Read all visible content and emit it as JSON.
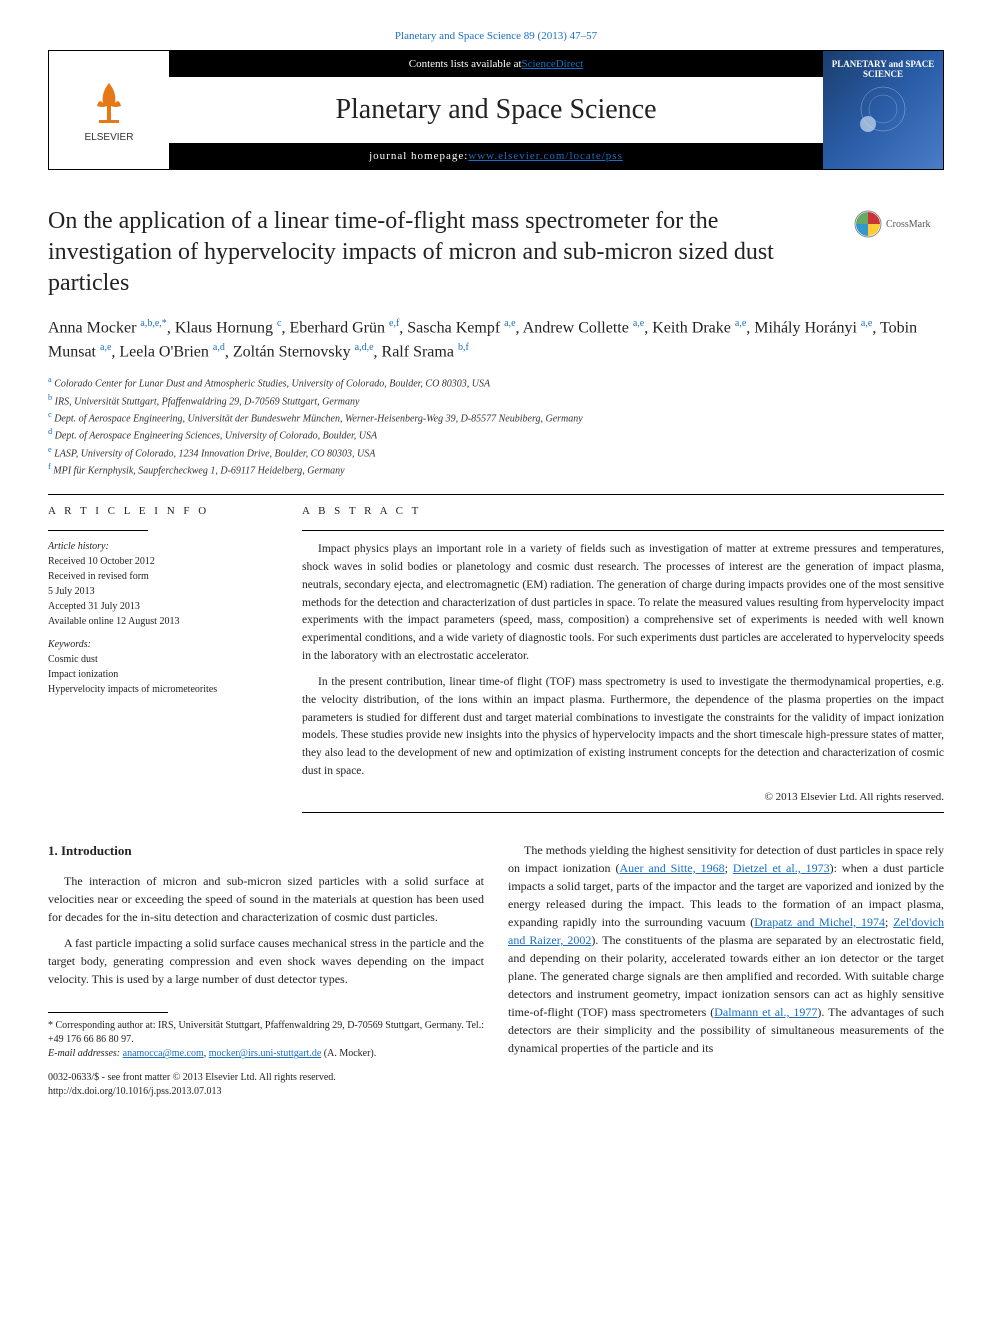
{
  "header": {
    "top_link": "Planetary and Space Science 89 (2013) 47–57",
    "contents_text": "Contents lists available at ",
    "contents_link": "ScienceDirect",
    "journal_name": "Planetary and Space Science",
    "homepage_label": "journal homepage: ",
    "homepage_url": "www.elsevier.com/locate/pss",
    "elsevier": "ELSEVIER",
    "cover_title": "PLANETARY and SPACE SCIENCE"
  },
  "title": "On the application of a linear time-of-flight mass spectrometer for the investigation of hypervelocity impacts of micron and sub-micron sized dust particles",
  "crossmark": "CrossMark",
  "authors_html": "Anna Mocker <sup>a,b,e,*</sup>, Klaus Hornung <sup>c</sup>, Eberhard Grün <sup>e,f</sup>, Sascha Kempf <sup>a,e</sup>, Andrew Collette <sup>a,e</sup>, Keith Drake <sup>a,e</sup>, Mihály Horányi <sup>a,e</sup>, Tobin Munsat <sup>a,e</sup>, Leela O'Brien <sup>a,d</sup>, Zoltán Sternovsky <sup>a,d,e</sup>, Ralf Srama <sup>b,f</sup>",
  "affiliations": [
    {
      "sup": "a",
      "text": "Colorado Center for Lunar Dust and Atmospheric Studies, University of Colorado, Boulder, CO 80303, USA"
    },
    {
      "sup": "b",
      "text": "IRS, Universität Stuttgart, Pfaffenwaldring 29, D-70569 Stuttgart, Germany"
    },
    {
      "sup": "c",
      "text": "Dept. of Aerospace Engineering, Universität der Bundeswehr München, Werner-Heisenberg-Weg 39, D-85577 Neubiberg, Germany"
    },
    {
      "sup": "d",
      "text": "Dept. of Aerospace Engineering Sciences, University of Colorado, Boulder, USA"
    },
    {
      "sup": "e",
      "text": "LASP, University of Colorado, 1234 Innovation Drive, Boulder, CO 80303, USA"
    },
    {
      "sup": "f",
      "text": "MPI für Kernphysik, Saupfercheckweg 1, D-69117 Heidelberg, Germany"
    }
  ],
  "article_info": {
    "heading": "A R T I C L E   I N F O",
    "history_label": "Article history:",
    "history": [
      "Received 10 October 2012",
      "Received in revised form",
      "5 July 2013",
      "Accepted 31 July 2013",
      "Available online 12 August 2013"
    ],
    "keywords_label": "Keywords:",
    "keywords": [
      "Cosmic dust",
      "Impact ionization",
      "Hypervelocity impacts of micrometeorites"
    ]
  },
  "abstract": {
    "heading": "A B S T R A C T",
    "p1": "Impact physics plays an important role in a variety of fields such as investigation of matter at extreme pressures and temperatures, shock waves in solid bodies or planetology and cosmic dust research. The processes of interest are the generation of impact plasma, neutrals, secondary ejecta, and electromagnetic (EM) radiation. The generation of charge during impacts provides one of the most sensitive methods for the detection and characterization of dust particles in space. To relate the measured values resulting from hypervelocity impact experiments with the impact parameters (speed, mass, composition) a comprehensive set of experiments is needed with well known experimental conditions, and a wide variety of diagnostic tools. For such experiments dust particles are accelerated to hypervelocity speeds in the laboratory with an electrostatic accelerator.",
    "p2": "In the present contribution, linear time-of flight (TOF) mass spectrometry is used to investigate the thermodynamical properties, e.g. the velocity distribution, of the ions within an impact plasma. Furthermore, the dependence of the plasma properties on the impact parameters is studied for different dust and target material combinations to investigate the constraints for the validity of impact ionization models. These studies provide new insights into the physics of hypervelocity impacts and the short timescale high-pressure states of matter, they also lead to the development of new and optimization of existing instrument concepts for the detection and characterization of cosmic dust in space.",
    "copyright": "© 2013 Elsevier Ltd. All rights reserved."
  },
  "body": {
    "section_heading": "1.  Introduction",
    "left_p1": "The interaction of micron and sub-micron sized particles with a solid surface at velocities near or exceeding the speed of sound in the materials at question has been used for decades for the in-situ detection and characterization of cosmic dust particles.",
    "left_p2": "A fast particle impacting a solid surface causes mechanical stress in the particle and the target body, generating compression and even shock waves depending on the impact velocity. This is used by a large number of dust detector types.",
    "right_p1a": "The methods yielding the highest sensitivity for detection of dust particles in space rely on impact ionization (",
    "right_p1_ref1": "Auer and Sitte, 1968",
    "right_p1b": "; ",
    "right_p1_ref2": "Dietzel et al., 1973",
    "right_p1c": "): when a dust particle impacts a solid target, parts of the impactor and the target are vaporized and ionized by the energy released during the impact. This leads to the formation of an impact plasma, expanding rapidly into the surrounding vacuum (",
    "right_p1_ref3": "Drapatz and Michel, 1974",
    "right_p1d": "; ",
    "right_p1_ref4": "Zel'dovich and Raizer, 2002",
    "right_p1e": "). The constituents of the plasma are separated by an electrostatic field, and depending on their polarity, accelerated towards either an ion detector or the target plane. The generated charge signals are then amplified and recorded. With suitable charge detectors and instrument geometry, impact ionization sensors can act as highly sensitive time-of-flight (TOF) mass spectrometers (",
    "right_p1_ref5": "Dalmann et al., 1977",
    "right_p1f": "). The advantages of such detectors are their simplicity and the possibility of simultaneous measurements of the dynamical properties of the particle and its"
  },
  "footnote": {
    "corr_a": "* Corresponding author at: IRS, Universität Stuttgart, Pfaffenwaldring 29, D-70569 Stuttgart, Germany. Tel.: +49 176 66 86 80 97.",
    "email_label": "E-mail addresses: ",
    "email1": "anamocca@me.com",
    "email_sep": ", ",
    "email2": "mocker@irs.uni-stuttgart.de",
    "email_name": " (A. Mocker).",
    "issn": "0032-0633/$ - see front matter © 2013 Elsevier Ltd. All rights reserved.",
    "doi": "http://dx.doi.org/10.1016/j.pss.2013.07.013"
  },
  "colors": {
    "link": "#1a6fc4",
    "text": "#222222",
    "black": "#000000",
    "cover_grad_start": "#1a3d6d",
    "cover_grad_end": "#4a7dc8"
  }
}
